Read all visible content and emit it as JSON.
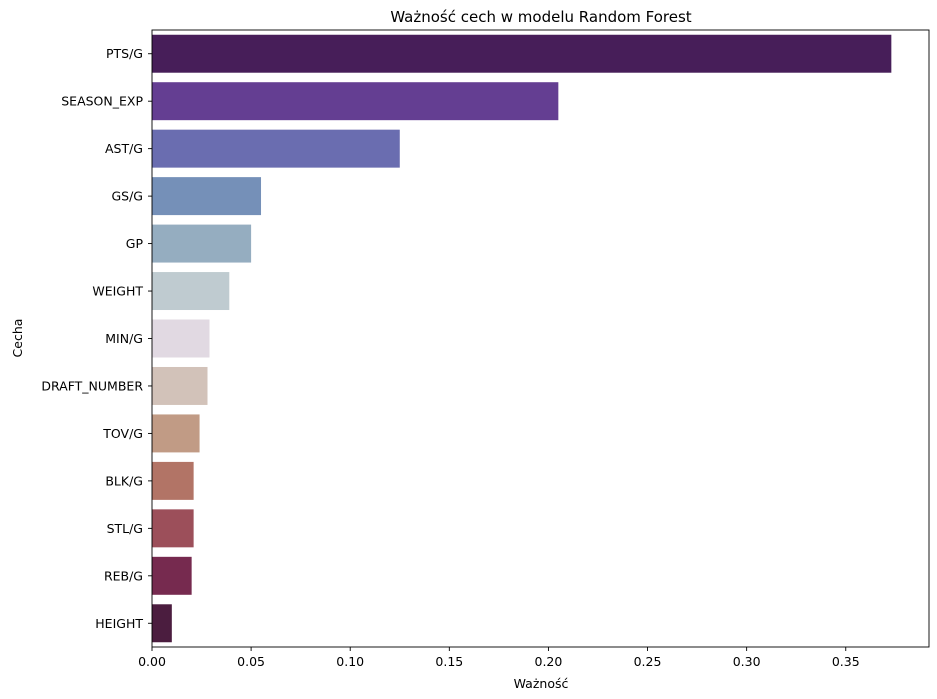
{
  "chart_data": {
    "type": "bar",
    "orientation": "horizontal",
    "title": "Ważność cech w modelu Random Forest",
    "xlabel": "Ważność",
    "ylabel": "Cecha",
    "categories": [
      "PTS/G",
      "SEASON_EXP",
      "AST/G",
      "GS/G",
      "GP",
      "WEIGHT",
      "MIN/G",
      "DRAFT_NUMBER",
      "TOV/G",
      "BLK/G",
      "STL/G",
      "REB/G",
      "HEIGHT"
    ],
    "values": [
      0.373,
      0.205,
      0.125,
      0.055,
      0.05,
      0.039,
      0.029,
      0.028,
      0.024,
      0.021,
      0.021,
      0.02,
      0.01
    ],
    "colors": [
      "#471e59",
      "#643e92",
      "#6a6db0",
      "#7590b8",
      "#95adc0",
      "#bfcbd0",
      "#e1d9e2",
      "#d2c2b9",
      "#c19b85",
      "#b27466",
      "#9c4f5a",
      "#762a4f",
      "#4b1d3f"
    ],
    "xlim": [
      0,
      0.392
    ],
    "xticks": [
      0.0,
      0.05,
      0.1,
      0.15,
      0.2,
      0.25,
      0.3,
      0.35
    ],
    "xtick_labels": [
      "0.00",
      "0.05",
      "0.10",
      "0.15",
      "0.20",
      "0.25",
      "0.30",
      "0.35"
    ],
    "grid": false,
    "legend": "none"
  }
}
